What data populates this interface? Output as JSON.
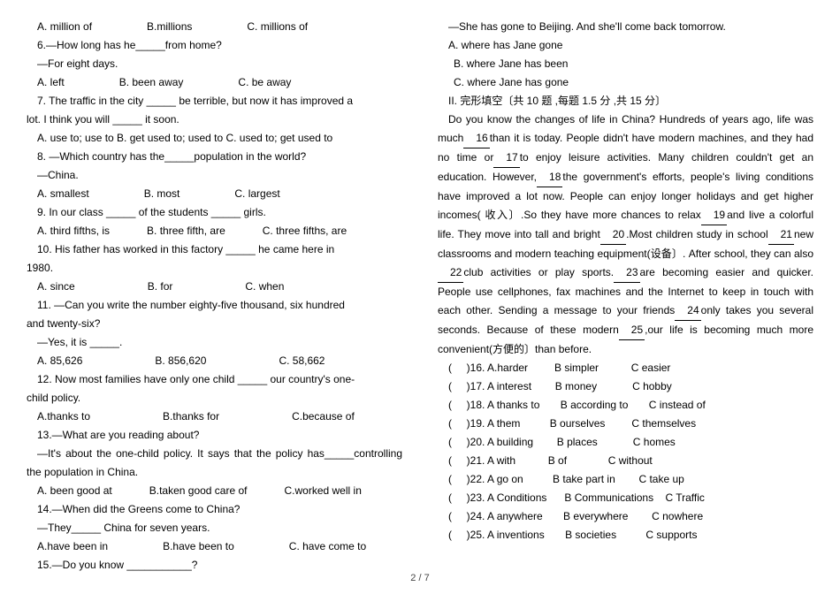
{
  "left": {
    "q5_opts": [
      "A. million of",
      "B.millions",
      "C. millions of"
    ],
    "q6": "6.—How long has he_____from home?",
    "q6_reply": "—For eight days.",
    "q6_opts": [
      "A. left",
      "B. been away",
      "C. be away"
    ],
    "q7a": "7. The traffic in the city _____ be terrible, but now it has improved a",
    "q7b": "lot. I think you will _____ it soon.",
    "q7_opts": "A. use to; use to   B. get used to; used to  C. used to; get used to",
    "q8": "8. —Which country has the_____population in the world?",
    "q8_reply": "—China.",
    "q8_opts": [
      "A. smallest",
      "B. most",
      "C. largest"
    ],
    "q9": "9. In our class _____ of the students _____ girls.",
    "q9_opts": [
      "A. third fifths, is",
      "B. three fifth, are",
      "C. three fifths, are"
    ],
    "q10a": "10. His father has worked in this factory _____ he came here in",
    "q10b": "1980.",
    "q10_opts": [
      "A. since",
      "B. for",
      "C. when"
    ],
    "q11a": "11. —Can you write the number eighty-five thousand, six hundred",
    "q11b": "and twenty-six?",
    "q11_reply": "—Yes, it is _____.",
    "q11_opts": [
      "A. 85,626",
      "B. 856,620",
      "C. 58,662"
    ],
    "q12a": "12. Now most families have only one child _____ our country's one-",
    "q12b": "child policy.",
    "q12_opts": [
      "A.thanks to",
      "B.thanks for",
      "C.because of"
    ],
    "q13": "13.—What are you reading about?",
    "q13_reply": "—It's  about  the  one-child  policy.  It  says  that  the  policy has_____controlling the population in China.",
    "q13_opts": [
      "A. been good at",
      "B.taken good care of",
      "C.worked well in"
    ],
    "q14": "14.—When did the Greens come to China?",
    "q14_reply": "—They_____ China for seven years.",
    "q14_opts": [
      "A.have been in",
      "B.have been to",
      "C.   have come to"
    ],
    "q15": "15.—Do you know ___________?"
  },
  "right": {
    "q15_reply": "—She has gone to Beijing. And she'll come back tomorrow.",
    "q15_optA": "A. where has Jane gone",
    "q15_optB": "B. where Jane has been",
    "q15_optC": "C. where Jane has gone",
    "section": "II. 完形填空〔共 10 题 ,每题 1.5 分 ,共 15 分〕",
    "passage": "Do you know the changes of life in China? Hundreds of years ago, life was much   16   than it is today. People didn't have modern machines, and they had no time or  17   to enjoy leisure activities. Many children couldn't get an education. However,   18   the government's efforts, people's living conditions have improved a lot now. People can enjoy longer holidays and get higher incomes( 收入〕.So they have more chances to relax  19   and live a colorful life. They move into tall and bright   20  .Most children study in school 21   new classrooms and modern teaching equipment(设备〕. After school, they can also   22   club activities or play sports.  23   are becoming easier and quicker. People use cellphones, fax machines and the Internet to keep in touch with each other. Sending a message to your friends   24   only takes you several seconds. Because of these modern   25     ,our life is becoming much more convenient(方便的〕than before.",
    "c16": "(     )16. A.harder         B simpler           C easier",
    "c17": "(     )17. A interest        B money            C hobby",
    "c18": "(     )18. A thanks to       B according to       C instead of",
    "c19": "(     )19. A them          B ourselves         C themselves",
    "c20": "(     )20. A building        B places            C homes",
    "c21": "(     )21. A with           B of              C without",
    "c22": "(     )22. A go on          B take part in        C take up",
    "c23": "(     )23. A Conditions      B Communications    C Traffic",
    "c24": "(     )24. A anywhere       B everywhere        C nowhere",
    "c25": "(     )25. A inventions       B societies          C supports"
  },
  "footer": "2 / 7"
}
